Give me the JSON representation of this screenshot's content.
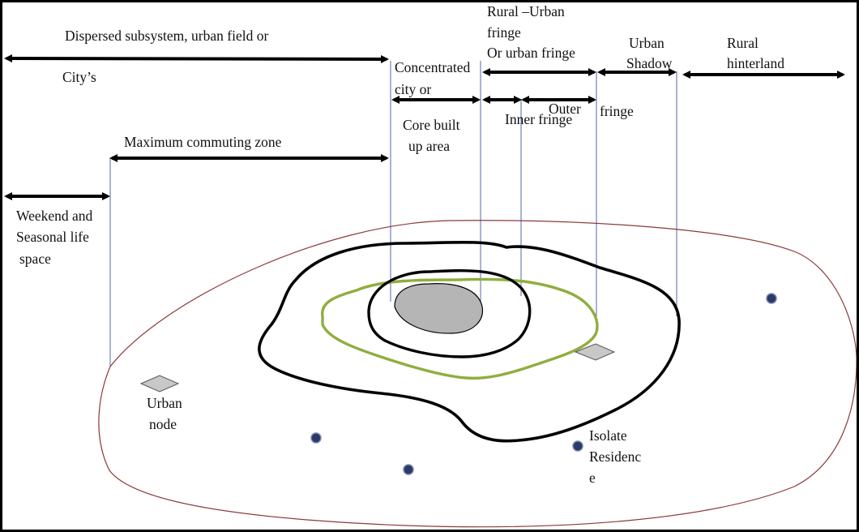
{
  "labels": {
    "dispersed": "Dispersed subsystem, urban field or",
    "citys": "City’s",
    "concentrated_1": "Concentrated",
    "concentrated_2": "city or",
    "core_1": "Core built",
    "core_2": "up area",
    "rural_urban_1": "Rural –Urban",
    "rural_urban_2": "fringe",
    "rural_urban_3": "Or urban fringe",
    "urban_shadow_1": "Urban",
    "urban_shadow_2": "Shadow",
    "rural_hinterland_1": "Rural",
    "rural_hinterland_2": "hinterland",
    "inner_fringe": "Inner fringe",
    "outer_fringe_1": "Outer",
    "outer_fringe_2": "fringe",
    "max_commuting": "Maximum commuting zone",
    "weekend_1": "Weekend and",
    "weekend_2": "Seasonal life",
    "weekend_3": "space",
    "urban_node_1": "Urban",
    "urban_node_2": "node",
    "isolate_1": "Isolate",
    "isolate_2": "Residenc",
    "isolate_3": "e"
  },
  "colors": {
    "outer_boundary": "#8b3a3a",
    "fringe_boundary": "#8fae3e",
    "contour": "#000000",
    "core_fill": "#b5b5b5",
    "node_fill": "#c8c8c8",
    "residence_dot": "#2b3a66",
    "guide_line": "#5566aa"
  },
  "symbols": {
    "urban_node": "diamond-icon",
    "isolate_residence": "dot-icon"
  }
}
